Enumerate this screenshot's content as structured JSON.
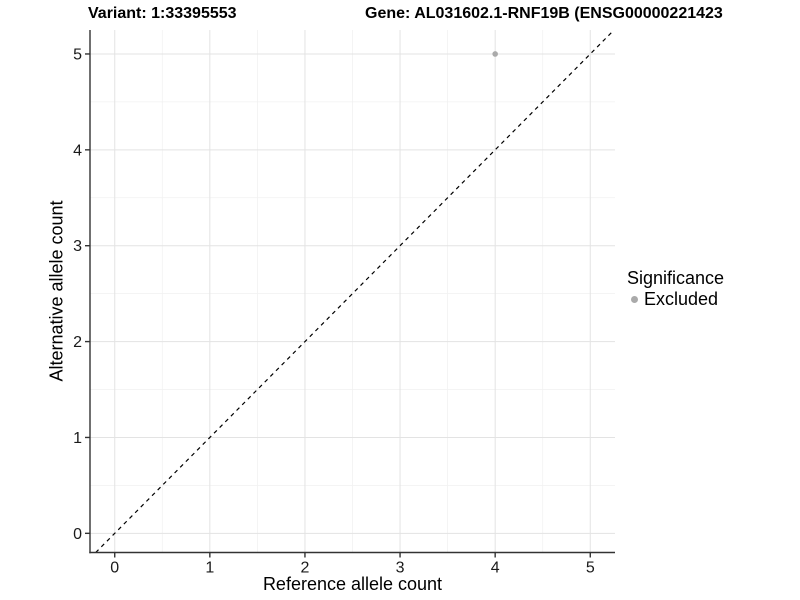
{
  "header": {
    "variant_title": "Variant: 1:33395553",
    "gene_title": "Gene: AL031602.1-RNF19B (ENSG00000221423"
  },
  "legend": {
    "title": "Significance",
    "items": [
      {
        "label": "Excluded",
        "color": "#aaaaaa"
      }
    ]
  },
  "chart_data": {
    "type": "scatter",
    "title_left": "Variant: 1:33395553",
    "title_right": "Gene: AL031602.1-RNF19B (ENSG00000221423",
    "xlabel": "Reference allele count",
    "ylabel": "Alternative allele count",
    "xlim": [
      -0.26,
      5.26
    ],
    "ylim": [
      -0.2,
      5.25
    ],
    "xticks": [
      0,
      1,
      2,
      3,
      4,
      5
    ],
    "yticks": [
      0,
      1,
      2,
      3,
      4,
      5
    ],
    "x_minor_ticks": [
      0.5,
      1.5,
      2.5,
      3.5,
      4.5
    ],
    "y_minor_ticks": [
      0.5,
      1.5,
      2.5,
      3.5,
      4.5
    ],
    "grid": true,
    "legend_position": "right",
    "series": [
      {
        "name": "Excluded",
        "color": "#aaaaaa",
        "point_radius": 2.8,
        "points": [
          {
            "x": 4,
            "y": 5
          }
        ]
      }
    ],
    "reference_line": {
      "slope": 1,
      "intercept": 0,
      "style": "dashed",
      "color": "#000000"
    }
  },
  "colors": {
    "background": "#ffffff",
    "grid_major": "#e3e3e3",
    "grid_minor": "#f1f1f1",
    "axis_line": "#333333",
    "tick_text": "#1a1a1a",
    "point": "#aaaaaa",
    "reference_line": "#000000"
  }
}
